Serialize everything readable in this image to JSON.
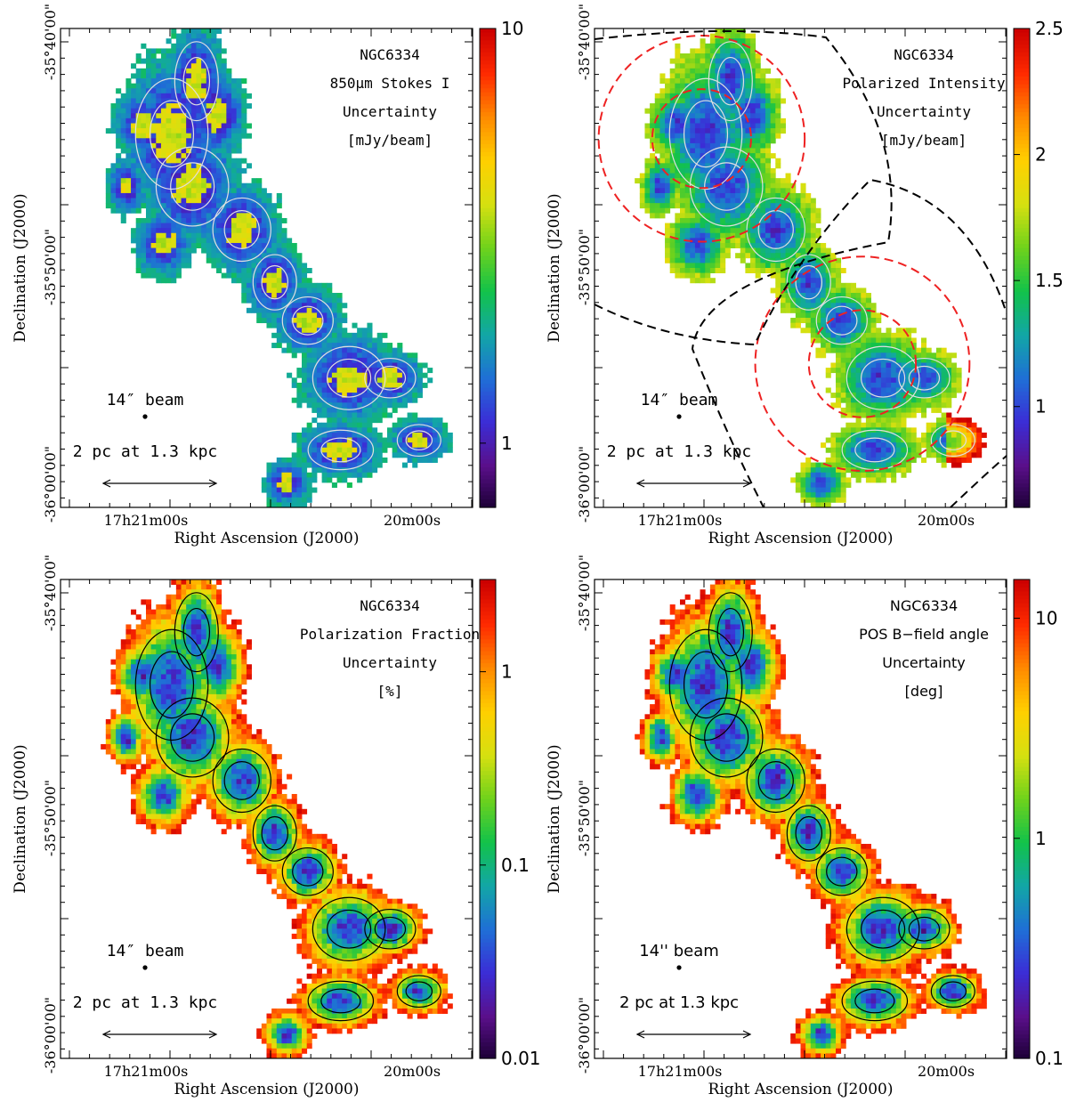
{
  "panels": [
    {
      "id": "stokes-i",
      "field": "NGC6334",
      "quantity": "850μm Stokes I",
      "quantity_prefix": "850",
      "quantity_unit_sym": "μ",
      "quantity_suffix": "m Stokes I",
      "line2": "Uncertainty",
      "unit": "[mJy/beam]",
      "colorbar": {
        "scale": "log",
        "range": [
          0.7,
          10
        ],
        "tick_labels": [
          "10",
          "1"
        ],
        "tick_values": [
          10,
          1
        ]
      },
      "ra_ticks": [
        "17h21m00s",
        "20m00s"
      ],
      "dec_ticks": [
        "-35°40'00\"",
        "-35°50'00\"",
        "-36°00'00\""
      ],
      "xlabel": "Right Ascension (J2000)",
      "ylabel": "Declination (J2000)",
      "beam_label": "14″ beam",
      "scalebar_label": "2 pc at 1.3 kpc",
      "has_pointing_circles": false
    },
    {
      "id": "polarized-intensity",
      "field": "NGC6334",
      "quantity": "Polarized Intensity",
      "line2": "Uncertainty",
      "unit": "[mJy/beam]",
      "colorbar": {
        "scale": "linear",
        "range": [
          0.6,
          2.5
        ],
        "tick_labels": [
          "2.5",
          "2",
          "1.5",
          "1"
        ],
        "tick_values": [
          2.5,
          2,
          1.5,
          1
        ]
      },
      "ra_ticks": [
        "17h21m00s",
        "20m00s"
      ],
      "dec_ticks": [
        "-35°40'00\"",
        "-35°50'00\"",
        "-36°00'00\""
      ],
      "xlabel": "Right Ascension (J2000)",
      "ylabel": "Declination (J2000)",
      "beam_label": "14″ beam",
      "scalebar_label": "2 pc at 1.3 kpc",
      "has_pointing_circles": true
    },
    {
      "id": "polarization-fraction",
      "field": "NGC6334",
      "quantity": "Polarization Fraction",
      "line2": "Uncertainty",
      "unit": "[%]",
      "colorbar": {
        "scale": "log",
        "range": [
          0.01,
          3
        ],
        "tick_labels": [
          "1",
          "0.1",
          "0.01"
        ],
        "tick_values": [
          1,
          0.1,
          0.01
        ]
      },
      "ra_ticks": [
        "17h21m00s",
        "20m00s"
      ],
      "dec_ticks": [
        "-35°40'00\"",
        "-35°50'00\"",
        "-36°00'00\""
      ],
      "xlabel": "Right Ascension (J2000)",
      "ylabel": "Declination (J2000)",
      "beam_label": "14″ beam",
      "scalebar_label": "2 pc at 1.3 kpc",
      "has_pointing_circles": false
    },
    {
      "id": "b-field-angle",
      "field": "NGC6334",
      "quantity": "POS B−field angle",
      "line2": "Uncertainty",
      "unit": "[deg]",
      "colorbar": {
        "scale": "log",
        "range": [
          0.1,
          15
        ],
        "tick_labels": [
          "10",
          "1",
          "0.1"
        ],
        "tick_values": [
          10,
          1,
          0.1
        ]
      },
      "ra_ticks": [
        "17h21m00s",
        "20m00s"
      ],
      "dec_ticks": [
        "-35°40'00\"",
        "-35°50'00\"",
        "-36°00'00\""
      ],
      "xlabel": "Right Ascension (J2000)",
      "ylabel": "Declination (J2000)",
      "beam_label": "14'' beam",
      "scalebar_label": "2 pc at 1.3 kpc",
      "has_pointing_circles": false
    }
  ],
  "colormap": [
    "#1a0033",
    "#5a0f8a",
    "#3b2dd6",
    "#1f6fd6",
    "#12a6a6",
    "#12c24a",
    "#6fd21c",
    "#d6e010",
    "#ffd000",
    "#ff8a00",
    "#ff2a00",
    "#cc0000"
  ]
}
